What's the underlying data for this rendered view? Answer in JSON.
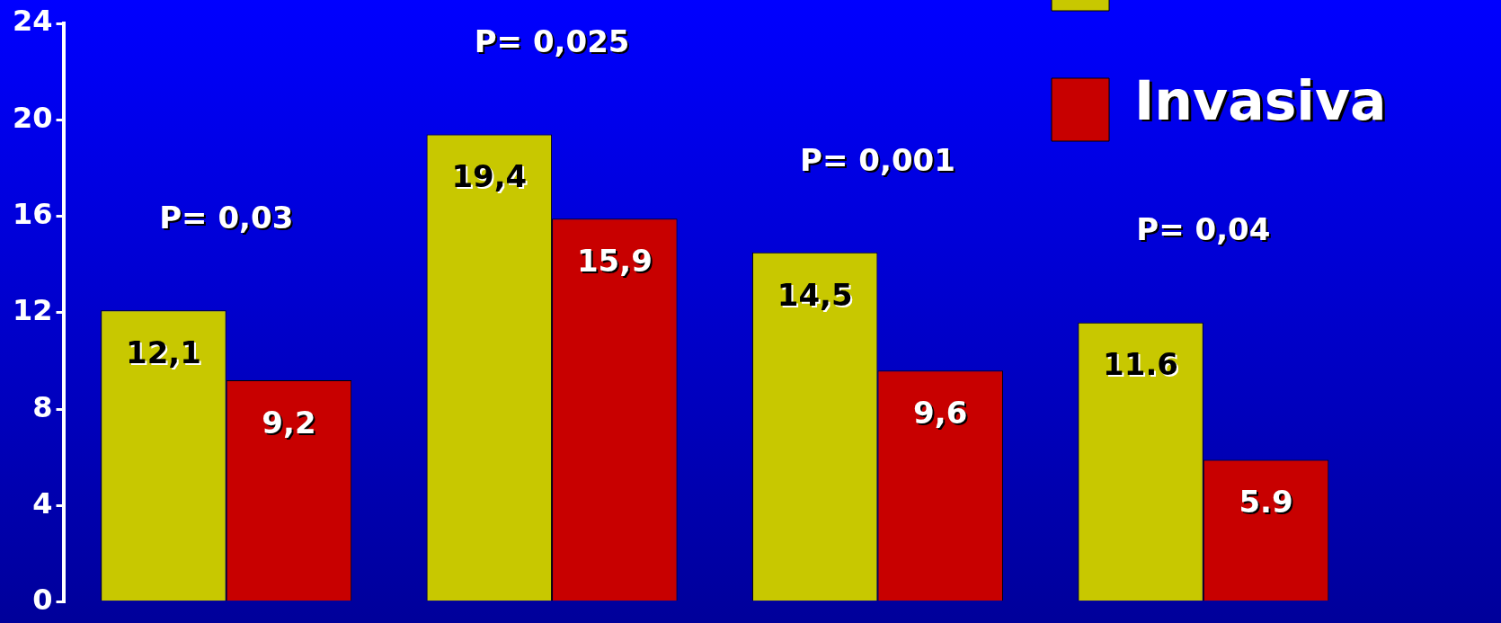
{
  "chart_data": {
    "type": "bar",
    "categories": [
      null,
      null,
      null,
      null
    ],
    "series": [
      {
        "color": "#c8c800",
        "values": [
          12.1,
          19.4,
          14.5,
          11.6
        ],
        "value_labels": [
          "12,1",
          "19,4",
          "14,5",
          "11.6"
        ]
      },
      {
        "name": "Invasiva",
        "color": "#c80000",
        "values": [
          9.2,
          15.9,
          9.6,
          5.9
        ],
        "value_labels": [
          "9,2",
          "15,9",
          "9,6",
          "5.9"
        ]
      }
    ],
    "annotations": [
      "P= 0,03",
      "P= 0,025",
      "P= 0,001",
      "P= 0,04"
    ],
    "ylim": [
      0,
      24
    ],
    "yticks": [
      0,
      4,
      8,
      12,
      16,
      20,
      24
    ],
    "grid": false,
    "legend": "top right"
  }
}
